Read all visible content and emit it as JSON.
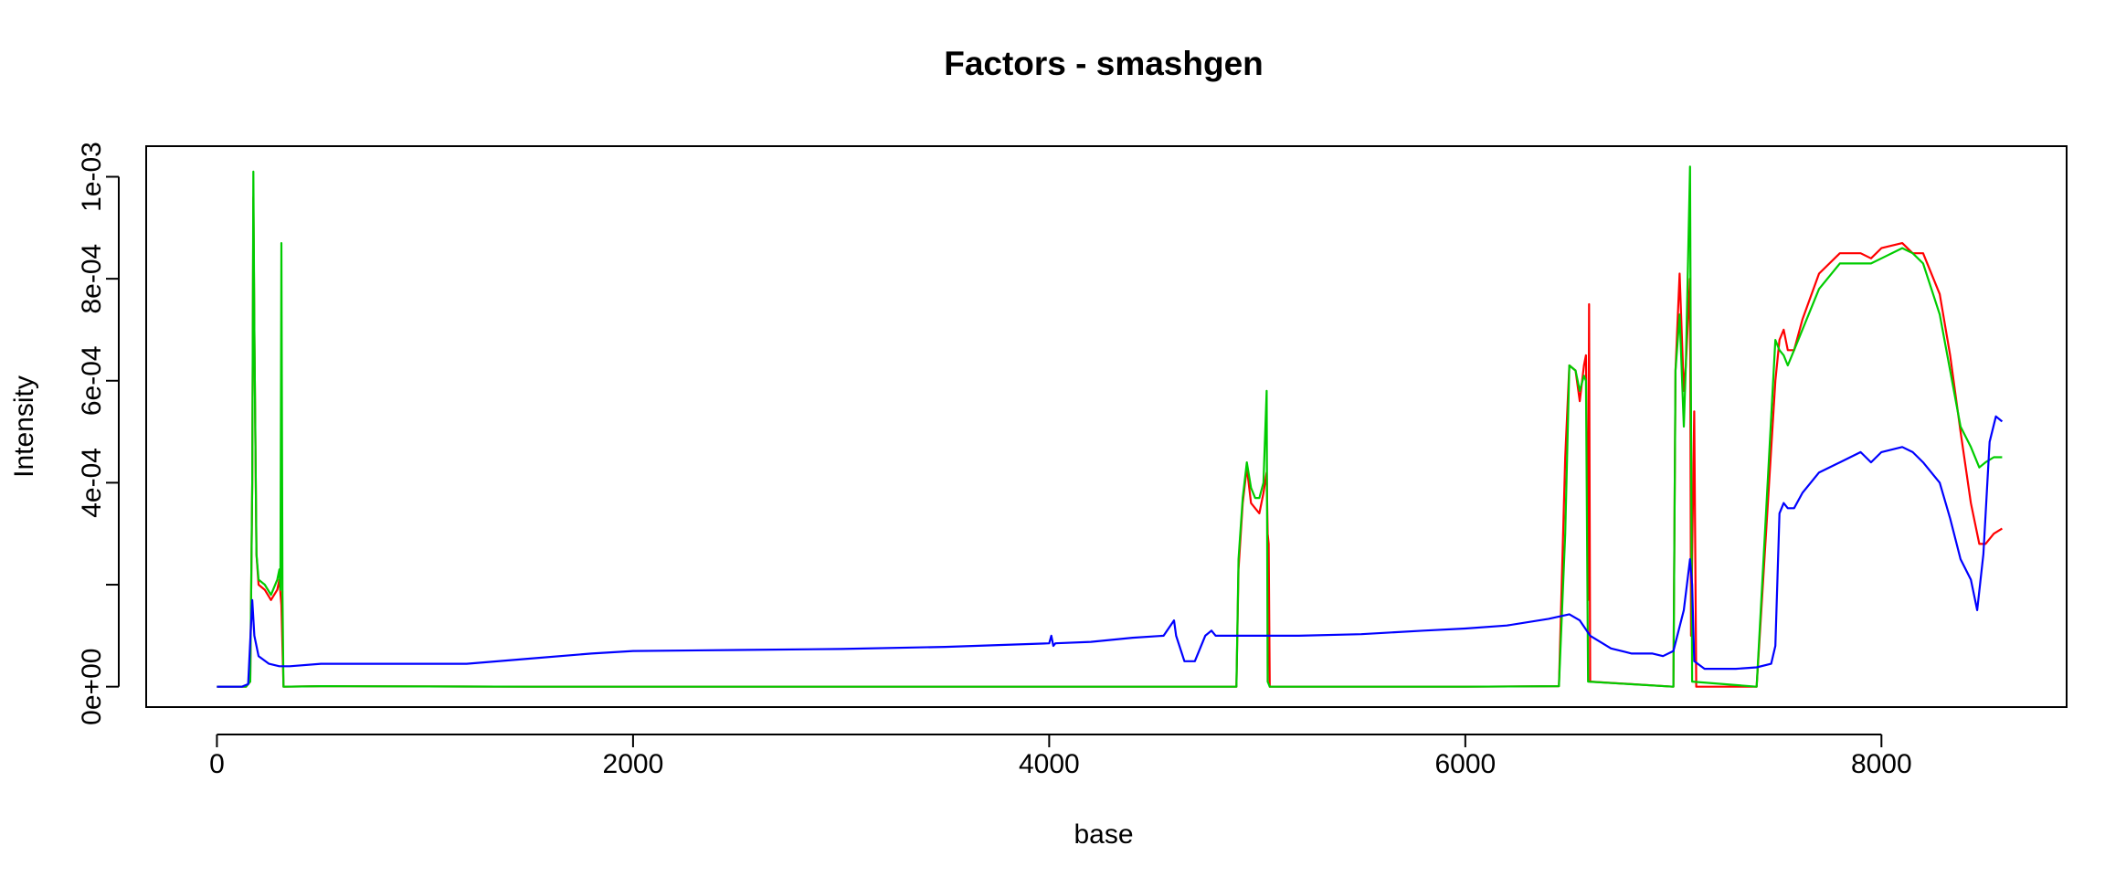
{
  "chart_data": {
    "type": "line",
    "title": "Factors - smashgen",
    "xlabel": "base",
    "ylabel": "Intensity",
    "xlim": [
      -340,
      8890
    ],
    "ylim": [
      -4e-05,
      0.00106
    ],
    "x_ticks": [
      {
        "value": 0,
        "label": "0"
      },
      {
        "value": 2000,
        "label": "2000"
      },
      {
        "value": 4000,
        "label": "4000"
      },
      {
        "value": 6000,
        "label": "6000"
      },
      {
        "value": 8000,
        "label": "8000"
      }
    ],
    "y_ticks": [
      {
        "value": 0,
        "label": "0e+00"
      },
      {
        "value": 0.0002,
        "label": ""
      },
      {
        "value": 0.0004,
        "label": "4e-04"
      },
      {
        "value": 0.0006,
        "label": "6e-04"
      },
      {
        "value": 0.0008,
        "label": "8e-04"
      },
      {
        "value": 0.001,
        "label": "1e-03"
      }
    ],
    "grid": false,
    "series": [
      {
        "color": "#ff0000",
        "points": [
          [
            0,
            0
          ],
          [
            140,
            0
          ],
          [
            160,
            1e-05
          ],
          [
            170,
            0.0004
          ],
          [
            175,
            0.00096
          ],
          [
            180,
            0.0007
          ],
          [
            190,
            0.00026
          ],
          [
            200,
            0.0002
          ],
          [
            230,
            0.00019
          ],
          [
            260,
            0.00017
          ],
          [
            290,
            0.00019
          ],
          [
            300,
            0.00021
          ],
          [
            310,
            0.00016
          ],
          [
            320,
            0
          ],
          [
            500,
            1e-06
          ],
          [
            1500,
            0
          ],
          [
            3000,
            0
          ],
          [
            4600,
            0
          ],
          [
            4900,
            0
          ],
          [
            4910,
            0.00023
          ],
          [
            4930,
            0.00036
          ],
          [
            4950,
            0.00043
          ],
          [
            4970,
            0.00036
          ],
          [
            4990,
            0.00035
          ],
          [
            5010,
            0.00034
          ],
          [
            5030,
            0.00038
          ],
          [
            5045,
            0.00042
          ],
          [
            5050,
            0.0003
          ],
          [
            5055,
            0.00028
          ],
          [
            5060,
            0
          ],
          [
            6000,
            0
          ],
          [
            6450,
            1e-06
          ],
          [
            6480,
            0.00045
          ],
          [
            6500,
            0.00063
          ],
          [
            6530,
            0.00062
          ],
          [
            6550,
            0.00056
          ],
          [
            6570,
            0.00063
          ],
          [
            6580,
            0.00065
          ],
          [
            6590,
            0.00017
          ],
          [
            6595,
            0.00075
          ],
          [
            6600,
            1e-05
          ],
          [
            7000,
            0
          ],
          [
            7010,
            0.00062
          ],
          [
            7030,
            0.00081
          ],
          [
            7050,
            0.00058
          ],
          [
            7060,
            0.00063
          ],
          [
            7080,
            0.0008
          ],
          [
            7085,
            0.0001
          ],
          [
            7100,
            0.00054
          ],
          [
            7110,
            0
          ],
          [
            7400,
            0
          ],
          [
            7490,
            0.0006
          ],
          [
            7510,
            0.00068
          ],
          [
            7530,
            0.0007
          ],
          [
            7550,
            0.00066
          ],
          [
            7580,
            0.00066
          ],
          [
            7620,
            0.00072
          ],
          [
            7700,
            0.00081
          ],
          [
            7800,
            0.00085
          ],
          [
            7900,
            0.00085
          ],
          [
            7950,
            0.00084
          ],
          [
            8000,
            0.00086
          ],
          [
            8100,
            0.00087
          ],
          [
            8150,
            0.00085
          ],
          [
            8200,
            0.00085
          ],
          [
            8280,
            0.00077
          ],
          [
            8330,
            0.00065
          ],
          [
            8380,
            0.0005
          ],
          [
            8430,
            0.00036
          ],
          [
            8470,
            0.00028
          ],
          [
            8500,
            0.00028
          ],
          [
            8540,
            0.0003
          ],
          [
            8580,
            0.00031
          ]
        ]
      },
      {
        "color": "#00cc00",
        "points": [
          [
            0,
            0
          ],
          [
            140,
            0
          ],
          [
            160,
            1e-05
          ],
          [
            170,
            0.0004
          ],
          [
            175,
            0.00101
          ],
          [
            180,
            0.0007
          ],
          [
            190,
            0.00026
          ],
          [
            200,
            0.00021
          ],
          [
            230,
            0.0002
          ],
          [
            260,
            0.00018
          ],
          [
            290,
            0.00021
          ],
          [
            300,
            0.00023
          ],
          [
            305,
            0.00019
          ],
          [
            310,
            0.00087
          ],
          [
            315,
            0.00018
          ],
          [
            320,
            0
          ],
          [
            500,
            1e-06
          ],
          [
            1500,
            0
          ],
          [
            3000,
            0
          ],
          [
            4600,
            0
          ],
          [
            4900,
            0
          ],
          [
            4910,
            0.00025
          ],
          [
            4930,
            0.00037
          ],
          [
            4950,
            0.00044
          ],
          [
            4970,
            0.00039
          ],
          [
            4990,
            0.00037
          ],
          [
            5010,
            0.00037
          ],
          [
            5030,
            0.0004
          ],
          [
            5045,
            0.00058
          ],
          [
            5050,
            1e-05
          ],
          [
            5060,
            0
          ],
          [
            6000,
            0
          ],
          [
            6450,
            1e-06
          ],
          [
            6480,
            0.0003
          ],
          [
            6500,
            0.00063
          ],
          [
            6530,
            0.00062
          ],
          [
            6550,
            0.00058
          ],
          [
            6570,
            0.00061
          ],
          [
            6580,
            0.0006
          ],
          [
            6590,
            1e-05
          ],
          [
            7000,
            0
          ],
          [
            7010,
            0.00062
          ],
          [
            7030,
            0.00073
          ],
          [
            7050,
            0.00051
          ],
          [
            7060,
            0.00063
          ],
          [
            7080,
            0.00102
          ],
          [
            7090,
            1e-05
          ],
          [
            7400,
            0
          ],
          [
            7490,
            0.00068
          ],
          [
            7510,
            0.00066
          ],
          [
            7530,
            0.00065
          ],
          [
            7550,
            0.00063
          ],
          [
            7580,
            0.00066
          ],
          [
            7620,
            0.0007
          ],
          [
            7700,
            0.00078
          ],
          [
            7800,
            0.00083
          ],
          [
            7900,
            0.00083
          ],
          [
            7950,
            0.00083
          ],
          [
            8000,
            0.00084
          ],
          [
            8100,
            0.00086
          ],
          [
            8150,
            0.00085
          ],
          [
            8200,
            0.00083
          ],
          [
            8280,
            0.00073
          ],
          [
            8330,
            0.00062
          ],
          [
            8380,
            0.00051
          ],
          [
            8430,
            0.00047
          ],
          [
            8470,
            0.00043
          ],
          [
            8500,
            0.00044
          ],
          [
            8540,
            0.00045
          ],
          [
            8580,
            0.00045
          ]
        ]
      },
      {
        "color": "#0000ff",
        "points": [
          [
            0,
            0
          ],
          [
            120,
            0
          ],
          [
            150,
            5e-06
          ],
          [
            170,
            0.00017
          ],
          [
            180,
            0.0001
          ],
          [
            200,
            6e-05
          ],
          [
            250,
            4.5e-05
          ],
          [
            300,
            4e-05
          ],
          [
            350,
            4e-05
          ],
          [
            500,
            4.5e-05
          ],
          [
            800,
            4.5e-05
          ],
          [
            1000,
            4.5e-05
          ],
          [
            1200,
            4.5e-05
          ],
          [
            1500,
            5.5e-05
          ],
          [
            1800,
            6.5e-05
          ],
          [
            2000,
            7e-05
          ],
          [
            2500,
            7.2e-05
          ],
          [
            3000,
            7.4e-05
          ],
          [
            3500,
            7.8e-05
          ],
          [
            4000,
            8.5e-05
          ],
          [
            4010,
            0.0001
          ],
          [
            4020,
            8e-05
          ],
          [
            4030,
            8.5e-05
          ],
          [
            4200,
            8.8e-05
          ],
          [
            4400,
            9.6e-05
          ],
          [
            4550,
            0.0001
          ],
          [
            4600,
            0.00013
          ],
          [
            4610,
            0.0001
          ],
          [
            4650,
            5e-05
          ],
          [
            4700,
            5e-05
          ],
          [
            4750,
            0.0001
          ],
          [
            4780,
            0.00011
          ],
          [
            4800,
            0.0001
          ],
          [
            5000,
            0.0001
          ],
          [
            5200,
            0.0001
          ],
          [
            5500,
            0.000103
          ],
          [
            5800,
            0.00011
          ],
          [
            6000,
            0.000114
          ],
          [
            6200,
            0.00012
          ],
          [
            6400,
            0.000133
          ],
          [
            6500,
            0.000142
          ],
          [
            6550,
            0.00013
          ],
          [
            6600,
            0.0001
          ],
          [
            6700,
            7.5e-05
          ],
          [
            6800,
            6.5e-05
          ],
          [
            6900,
            6.5e-05
          ],
          [
            6950,
            6e-05
          ],
          [
            7000,
            7e-05
          ],
          [
            7050,
            0.00015
          ],
          [
            7080,
            0.00025
          ],
          [
            7090,
            0.0002
          ],
          [
            7100,
            5e-05
          ],
          [
            7150,
            3.5e-05
          ],
          [
            7200,
            3.5e-05
          ],
          [
            7300,
            3.5e-05
          ],
          [
            7400,
            3.8e-05
          ],
          [
            7470,
            4.5e-05
          ],
          [
            7490,
            8e-05
          ],
          [
            7510,
            0.00034
          ],
          [
            7530,
            0.00036
          ],
          [
            7550,
            0.00035
          ],
          [
            7580,
            0.00035
          ],
          [
            7620,
            0.00038
          ],
          [
            7700,
            0.00042
          ],
          [
            7800,
            0.00044
          ],
          [
            7900,
            0.00046
          ],
          [
            7950,
            0.00044
          ],
          [
            8000,
            0.00046
          ],
          [
            8100,
            0.00047
          ],
          [
            8150,
            0.00046
          ],
          [
            8200,
            0.00044
          ],
          [
            8280,
            0.0004
          ],
          [
            8330,
            0.00033
          ],
          [
            8380,
            0.00025
          ],
          [
            8430,
            0.00021
          ],
          [
            8460,
            0.00015
          ],
          [
            8490,
            0.00026
          ],
          [
            8520,
            0.00048
          ],
          [
            8550,
            0.00053
          ],
          [
            8580,
            0.00052
          ]
        ]
      }
    ]
  }
}
